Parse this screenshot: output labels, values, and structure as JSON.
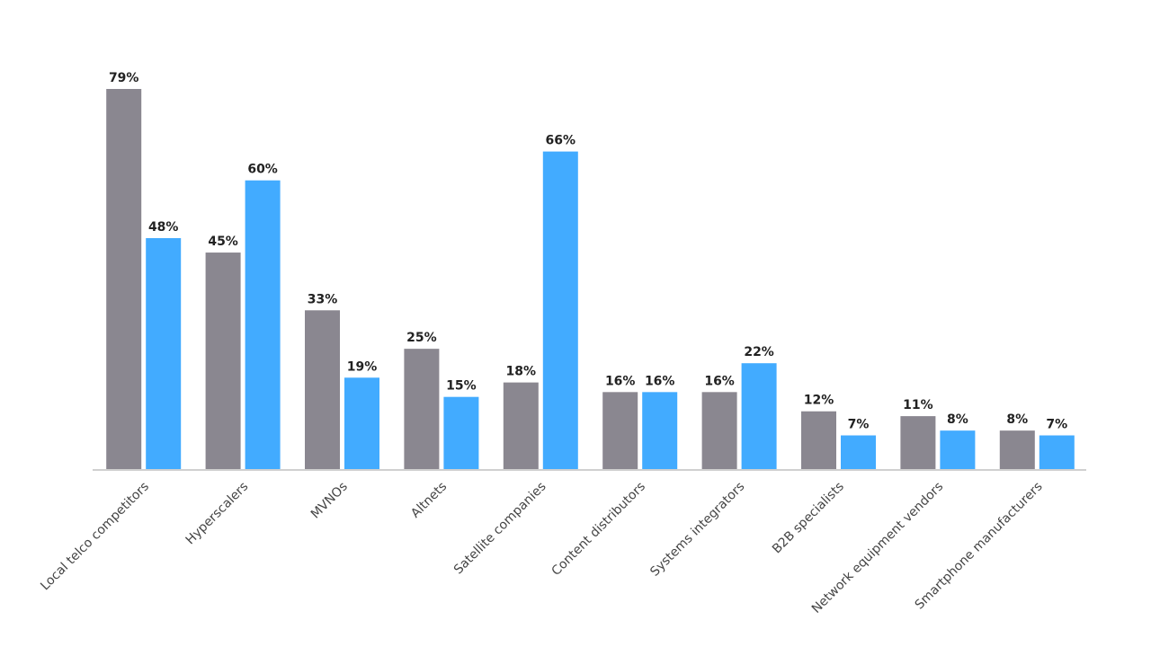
{
  "chart_data": {
    "type": "bar",
    "categories": [
      "Local telco competitors",
      "Hyperscalers",
      "MVNOs",
      "Altnets",
      "Satellite companies",
      "Content distributors",
      "Systems integrators",
      "B2B specialists",
      "Network equipment vendors",
      "Smartphone manufacturers"
    ],
    "series": [
      {
        "color": "#8a8790",
        "values": [
          79,
          45,
          33,
          25,
          18,
          16,
          16,
          12,
          11,
          8
        ],
        "value_labels": [
          "79%",
          "45%",
          "33%",
          "25%",
          "18%",
          "16%",
          "16%",
          "12%",
          "11%",
          "8%"
        ]
      },
      {
        "color": "#42abff",
        "values": [
          48,
          60,
          19,
          15,
          66,
          16,
          22,
          7,
          8,
          7
        ],
        "value_labels": [
          "48%",
          "60%",
          "19%",
          "15%",
          "66%",
          "16%",
          "22%",
          "7%",
          "8%",
          "7%"
        ]
      }
    ]
  }
}
